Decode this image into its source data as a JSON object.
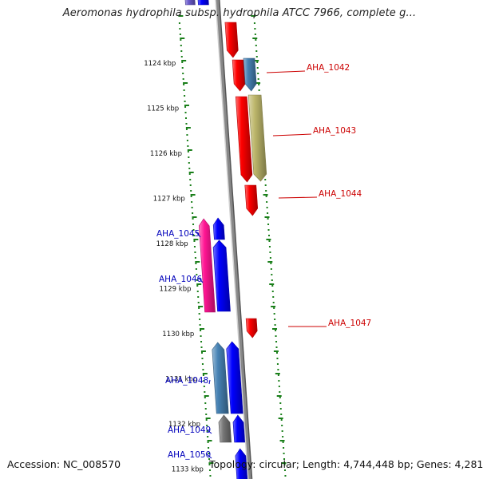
{
  "title": "Aeromonas hydrophila subsp. hydrophila ATCC 7966, complete g...",
  "footer": {
    "accession": "Accession: NC_008570",
    "summary": "Topology: circular; Length: 4,744,448 bp; Genes: 4,281"
  },
  "colors": {
    "backbone": "#888888",
    "tick": "#1a7f1a",
    "forward_label": "#cc0000",
    "reverse_label": "#0000bb",
    "red": "#ff0000",
    "blue": "#0000ff",
    "steelblue": "#4682b4",
    "khaki": "#bdb76b",
    "magenta": "#ff1493",
    "gray": "#777777",
    "violet": "#6a5acd"
  },
  "scale_labels": [
    "1124 kbp",
    "1125 kbp",
    "1126 kbp",
    "1127 kbp",
    "1128 kbp",
    "1129 kbp",
    "1130 kbp",
    "1131 kbp",
    "1132 kbp",
    "1133 kbp"
  ],
  "genes": [
    {
      "color": "violet",
      "strand": "-",
      "lane": "inner"
    },
    {
      "color": "blue",
      "strand": "-",
      "lane": "inner"
    },
    {
      "color": "red",
      "strand": "+",
      "lane": "inner"
    },
    {
      "color": "red",
      "strand": "+",
      "lane": "inner",
      "label": "AHA_1042"
    },
    {
      "color": "steelblue",
      "strand": "+",
      "lane": "outer"
    },
    {
      "color": "red",
      "strand": "+",
      "lane": "inner",
      "label": "AHA_1043"
    },
    {
      "color": "khaki",
      "strand": "+",
      "lane": "outer"
    },
    {
      "color": "red",
      "strand": "+",
      "lane": "inner",
      "label": "AHA_1044"
    },
    {
      "color": "magenta",
      "strand": "-",
      "lane": "outer",
      "label": "AHA_1045"
    },
    {
      "color": "blue",
      "strand": "-",
      "lane": "inner"
    },
    {
      "color": "blue",
      "strand": "-",
      "lane": "inner",
      "label": "AHA_1046"
    },
    {
      "color": "red",
      "strand": "+",
      "lane": "outer",
      "label": "AHA_1047"
    },
    {
      "color": "steelblue",
      "strand": "-",
      "lane": "outer",
      "label": "AHA_1048"
    },
    {
      "color": "blue",
      "strand": "-",
      "lane": "inner"
    },
    {
      "color": "gray",
      "strand": "-",
      "lane": "outer",
      "label": "AHA_1049"
    },
    {
      "color": "blue",
      "strand": "-",
      "lane": "inner"
    },
    {
      "color": "blue",
      "strand": "-",
      "lane": "inner",
      "label": "AHA_1050"
    }
  ]
}
